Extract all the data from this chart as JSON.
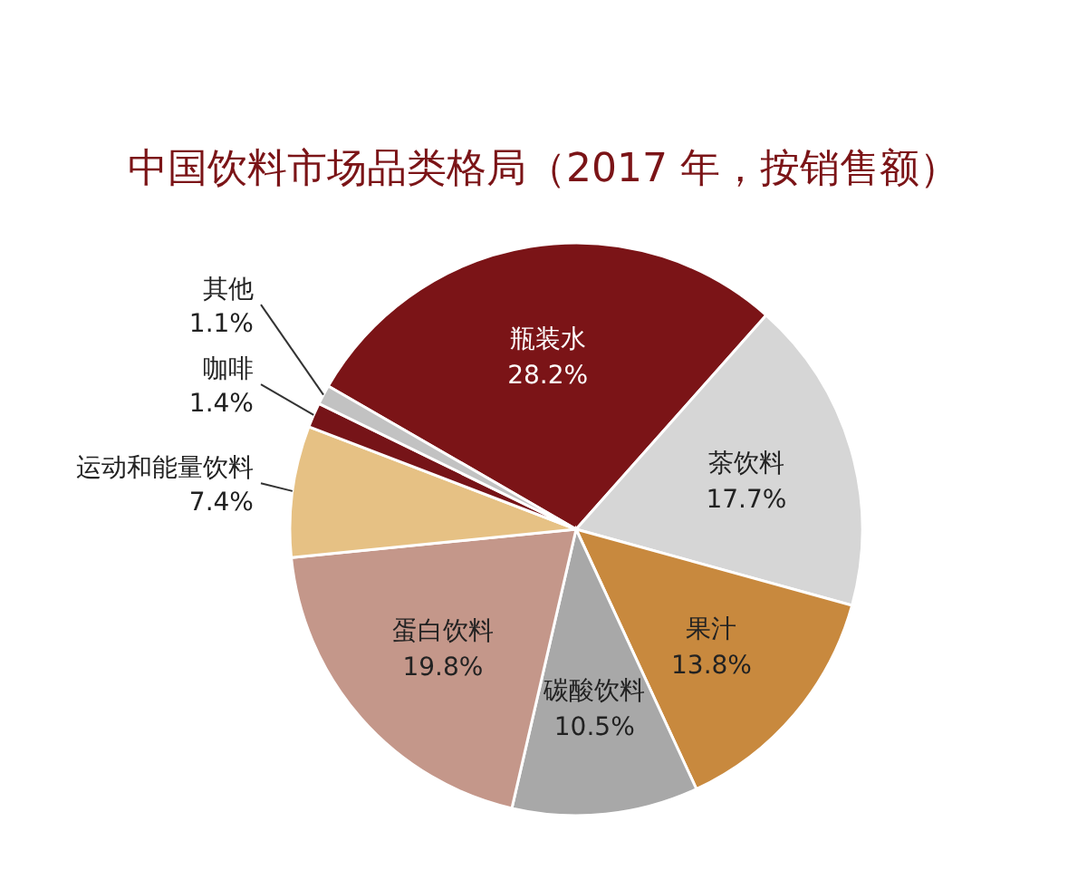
{
  "chart_data": {
    "type": "pie",
    "title": "中国饮料市场品类格局（2017 年，按销售额）",
    "categories": [
      "瓶装水",
      "茶饮料",
      "果汁",
      "碳酸饮料",
      "蛋白饮料",
      "运动和能量饮料",
      "咖啡",
      "其他"
    ],
    "values": [
      28.2,
      17.7,
      13.8,
      10.5,
      19.8,
      7.4,
      1.4,
      1.1
    ],
    "colors": [
      "#7b1417",
      "#d6d6d6",
      "#c8893e",
      "#a8a8a8",
      "#c4978a",
      "#e6c184",
      "#761418",
      "#c2c2c2"
    ],
    "value_labels": [
      "28.2%",
      "17.7%",
      "13.8%",
      "10.5%",
      "19.8%",
      "7.4%",
      "1.4%",
      "1.1%"
    ]
  }
}
